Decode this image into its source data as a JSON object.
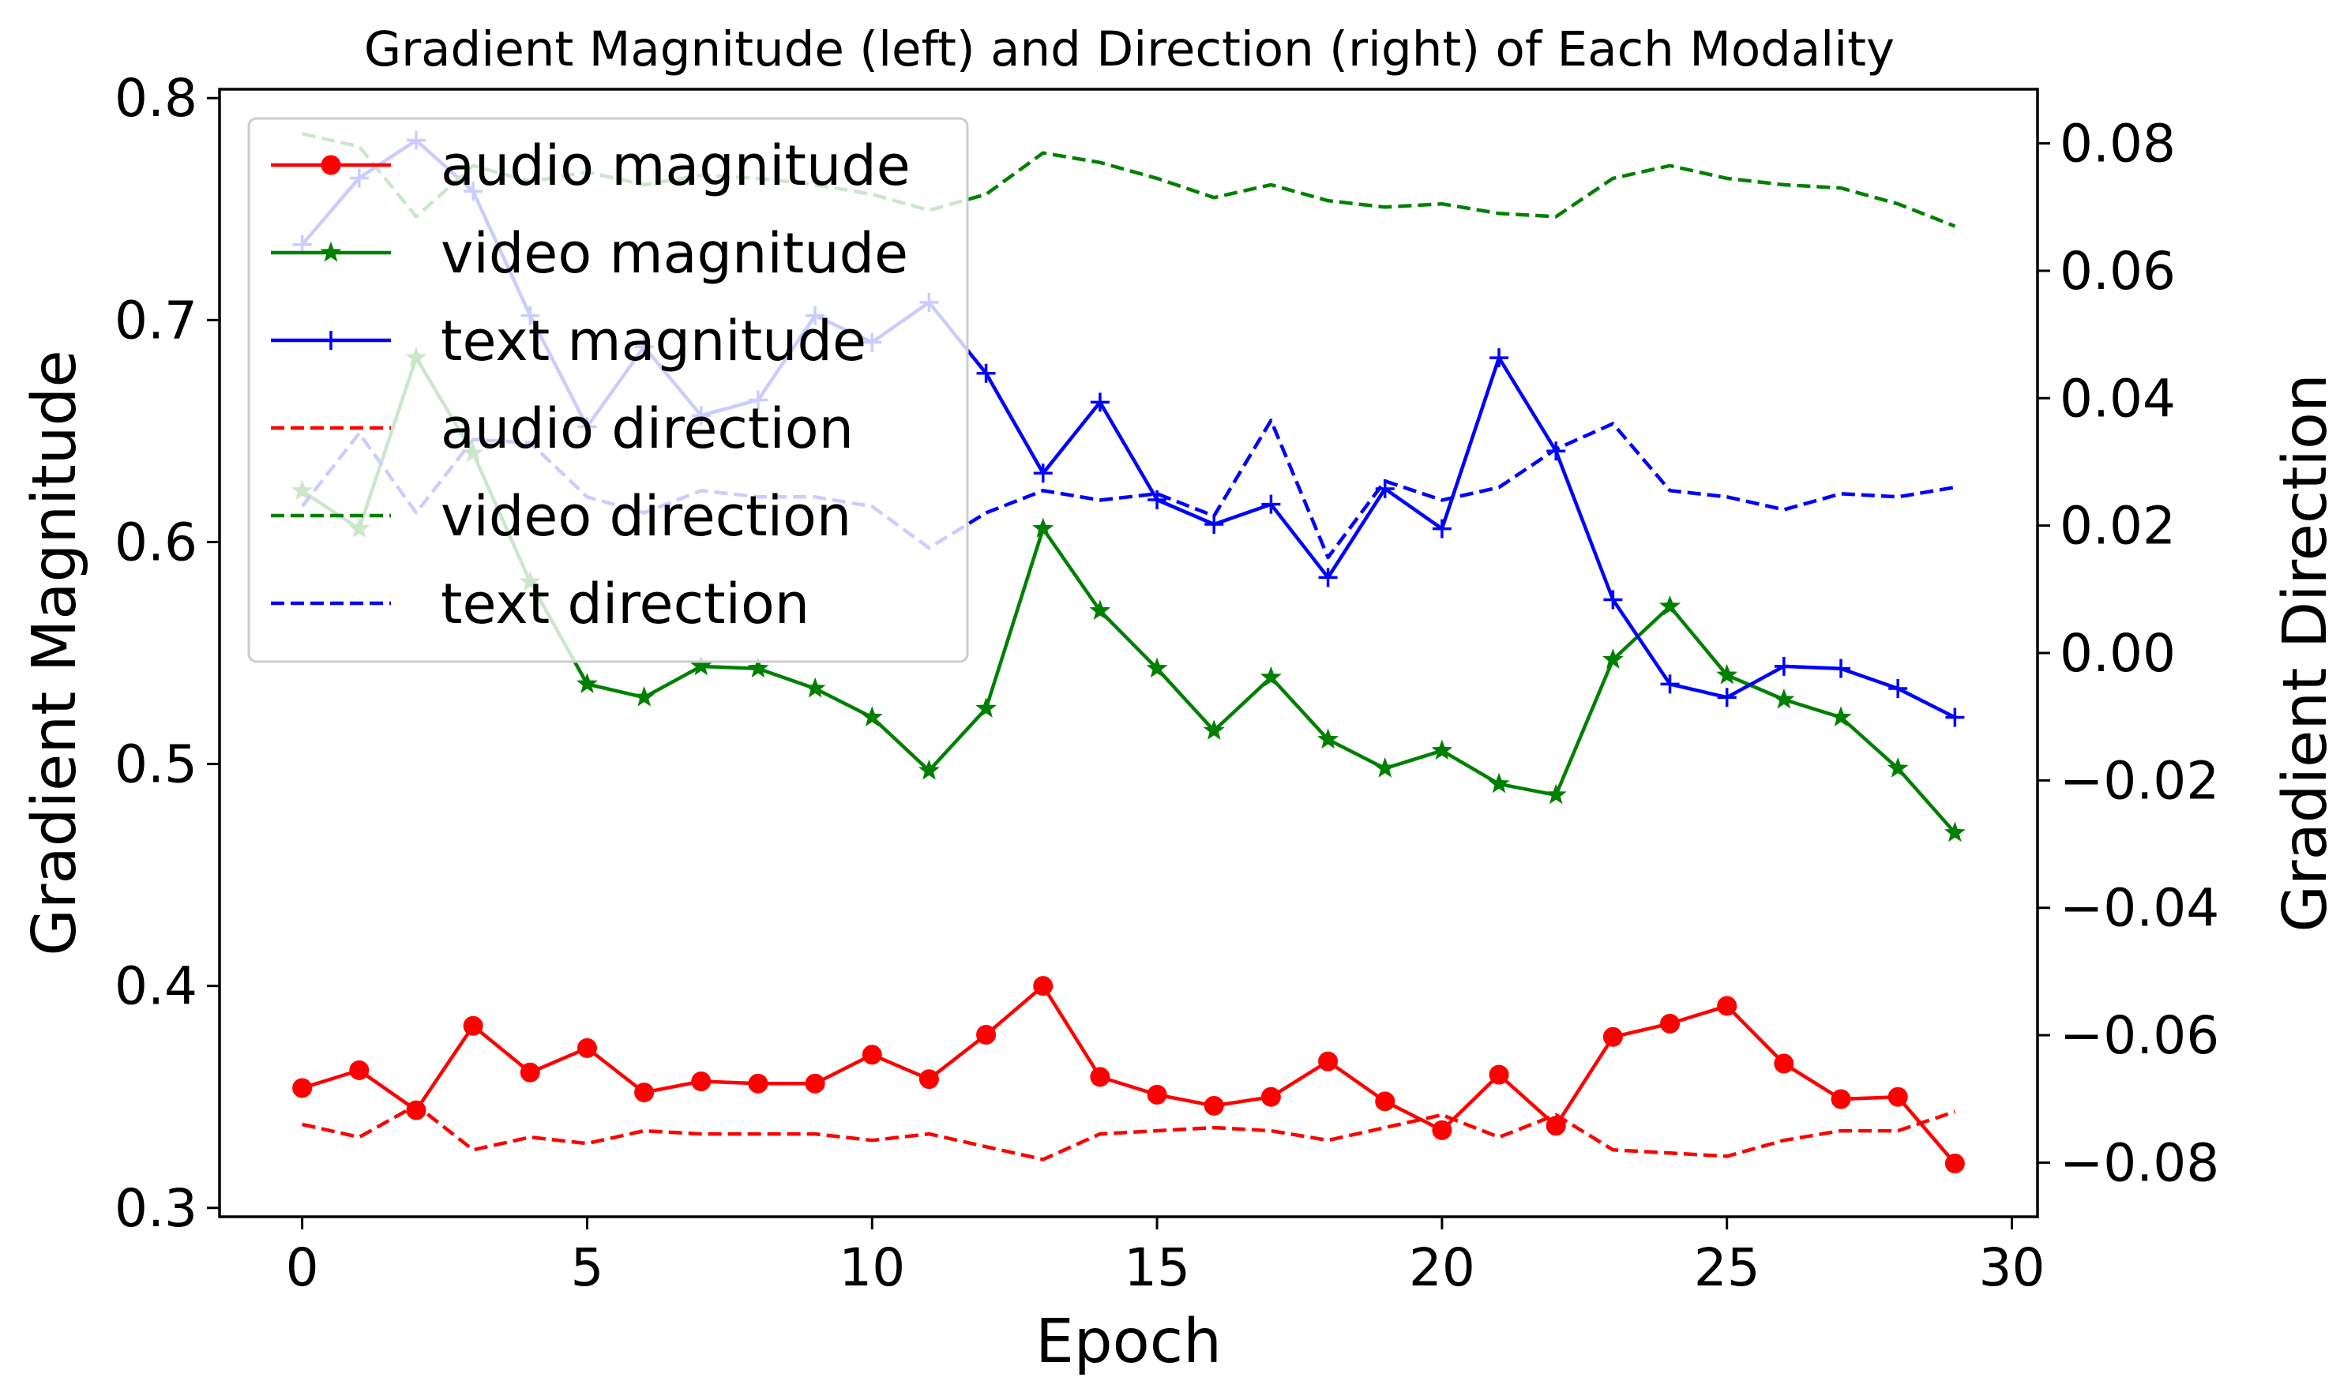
{
  "chart_data": {
    "type": "line",
    "title": "Gradient Magnitude (left) and Direction (right) of Each Modality",
    "xlabel": "Epoch",
    "ylabel_left": "Gradient Magnitude",
    "ylabel_right": "Gradient Direction",
    "xlim": [
      -1.45,
      30.45
    ],
    "ylim_left": [
      0.296,
      0.804
    ],
    "ylim_right": [
      -0.0885,
      0.0885
    ],
    "xticks": [
      0,
      5,
      10,
      15,
      20,
      25,
      30
    ],
    "xtick_labels": [
      "0",
      "5",
      "10",
      "15",
      "20",
      "25",
      "30"
    ],
    "yticks_left": [
      0.3,
      0.4,
      0.5,
      0.6,
      0.7,
      0.8
    ],
    "ytick_labels_left": [
      "0.3",
      "0.4",
      "0.5",
      "0.6",
      "0.7",
      "0.8"
    ],
    "yticks_right": [
      -0.08,
      -0.06,
      -0.04,
      -0.02,
      0.0,
      0.02,
      0.04,
      0.06,
      0.08
    ],
    "ytick_labels_right": [
      "−0.08",
      "−0.06",
      "−0.04",
      "−0.02",
      "0.00",
      "0.02",
      "0.04",
      "0.06",
      "0.08"
    ],
    "grid": false,
    "legend_position": "upper-left",
    "x": [
      0,
      1,
      2,
      3,
      4,
      5,
      6,
      7,
      8,
      9,
      10,
      11,
      12,
      13,
      14,
      15,
      16,
      17,
      18,
      19,
      20,
      21,
      22,
      23,
      24,
      25,
      26,
      27,
      28,
      29
    ],
    "series": [
      {
        "name": "audio magnitude",
        "axis": "left",
        "color": "#ff0000",
        "style": "solid",
        "marker": "circle",
        "values": [
          0.354,
          0.362,
          0.344,
          0.382,
          0.361,
          0.372,
          0.352,
          0.357,
          0.356,
          0.356,
          0.369,
          0.358,
          0.378,
          0.4,
          0.359,
          0.351,
          0.346,
          0.35,
          0.366,
          0.348,
          0.335,
          0.36,
          0.337,
          0.377,
          0.383,
          0.391,
          0.365,
          0.349,
          0.35,
          0.32
        ]
      },
      {
        "name": "video magnitude",
        "axis": "left",
        "color": "#008000",
        "style": "solid",
        "marker": "star",
        "values": [
          0.623,
          0.606,
          0.683,
          0.64,
          0.582,
          0.536,
          0.53,
          0.544,
          0.543,
          0.534,
          0.521,
          0.497,
          0.525,
          0.606,
          0.569,
          0.543,
          0.515,
          0.539,
          0.511,
          0.498,
          0.506,
          0.491,
          0.486,
          0.547,
          0.571,
          0.54,
          0.529,
          0.521,
          0.498,
          0.469
        ]
      },
      {
        "name": "text magnitude",
        "axis": "left",
        "color": "#0000ff",
        "style": "solid",
        "marker": "plus",
        "values": [
          0.734,
          0.764,
          0.781,
          0.758,
          0.702,
          0.652,
          0.688,
          0.657,
          0.664,
          0.702,
          0.69,
          0.708,
          0.676,
          0.631,
          0.663,
          0.619,
          0.608,
          0.617,
          0.584,
          0.624,
          0.606,
          0.683,
          0.641,
          0.574,
          0.536,
          0.53,
          0.544,
          0.543,
          0.534,
          0.521
        ]
      },
      {
        "name": "audio direction",
        "axis": "right",
        "color": "#ff0000",
        "style": "dashed",
        "values": [
          -0.074,
          -0.076,
          -0.071,
          -0.078,
          -0.076,
          -0.077,
          -0.075,
          -0.0755,
          -0.0755,
          -0.0755,
          -0.0765,
          -0.0755,
          -0.0775,
          -0.0795,
          -0.0755,
          -0.075,
          -0.0745,
          -0.075,
          -0.0765,
          -0.0745,
          -0.0725,
          -0.076,
          -0.0725,
          -0.078,
          -0.0785,
          -0.079,
          -0.0765,
          -0.075,
          -0.075,
          -0.072
        ]
      },
      {
        "name": "video direction",
        "axis": "right",
        "color": "#008000",
        "style": "dashed",
        "values": [
          0.0815,
          0.0795,
          0.0685,
          0.0765,
          0.074,
          0.0755,
          0.0735,
          0.075,
          0.0745,
          0.0735,
          0.072,
          0.0695,
          0.072,
          0.0785,
          0.077,
          0.0745,
          0.0715,
          0.0735,
          0.071,
          0.07,
          0.0705,
          0.069,
          0.0685,
          0.0745,
          0.0765,
          0.0745,
          0.0735,
          0.073,
          0.0705,
          0.067
        ]
      },
      {
        "name": "text direction",
        "axis": "right",
        "color": "#0000ff",
        "style": "dashed",
        "values": [
          0.023,
          0.0345,
          0.022,
          0.0335,
          0.033,
          0.0245,
          0.022,
          0.0255,
          0.0245,
          0.0245,
          0.023,
          0.0165,
          0.022,
          0.0255,
          0.024,
          0.025,
          0.0215,
          0.0365,
          0.015,
          0.027,
          0.024,
          0.026,
          0.032,
          0.036,
          0.0255,
          0.0245,
          0.0225,
          0.025,
          0.0245,
          0.026
        ]
      }
    ]
  }
}
